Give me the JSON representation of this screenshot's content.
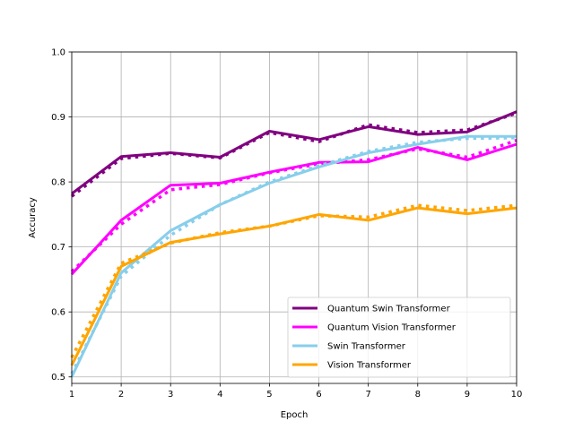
{
  "chart_data": {
    "type": "line",
    "title": "",
    "xlabel": "Epoch",
    "ylabel": "Accuracy",
    "xlim": [
      1,
      10
    ],
    "ylim": [
      0.49,
      1.0
    ],
    "x_ticks": [
      1,
      2,
      3,
      4,
      5,
      6,
      7,
      8,
      9,
      10
    ],
    "y_ticks": [
      0.5,
      0.6,
      0.7,
      0.8,
      0.9,
      1.0
    ],
    "y_tick_labels": [
      "0.5",
      "0.6",
      "0.7",
      "0.8",
      "0.9",
      "1.0"
    ],
    "grid": true,
    "legend_position": "lower-right",
    "x": [
      1,
      2,
      3,
      4,
      5,
      6,
      7,
      8,
      9,
      10
    ],
    "series": [
      {
        "name": "Quantum Swin Transformer",
        "color": "#800080",
        "values": [
          0.782,
          0.839,
          0.845,
          0.838,
          0.878,
          0.865,
          0.885,
          0.873,
          0.877,
          0.908
        ],
        "dotted_values": [
          0.778,
          0.836,
          0.844,
          0.837,
          0.876,
          0.862,
          0.888,
          0.876,
          0.88,
          0.906
        ]
      },
      {
        "name": "Quantum Vision Transformer",
        "color": "#ff00ff",
        "values": [
          0.658,
          0.741,
          0.795,
          0.798,
          0.815,
          0.83,
          0.831,
          0.853,
          0.834,
          0.858
        ],
        "dotted_values": [
          0.662,
          0.735,
          0.788,
          0.796,
          0.814,
          0.828,
          0.834,
          0.851,
          0.838,
          0.864
        ]
      },
      {
        "name": "Swin Transformer",
        "color": "#87ceeb",
        "values": [
          0.5,
          0.66,
          0.725,
          0.765,
          0.798,
          0.823,
          0.845,
          0.858,
          0.87,
          0.87
        ],
        "dotted_values": [
          0.505,
          0.655,
          0.718,
          0.765,
          0.8,
          0.825,
          0.847,
          0.861,
          0.867,
          0.868
        ]
      },
      {
        "name": "Vision Transformer",
        "color": "#ffa500",
        "values": [
          0.518,
          0.67,
          0.707,
          0.72,
          0.732,
          0.75,
          0.741,
          0.76,
          0.751,
          0.76
        ],
        "dotted_values": [
          0.53,
          0.675,
          0.706,
          0.722,
          0.732,
          0.748,
          0.746,
          0.764,
          0.756,
          0.764
        ]
      }
    ]
  }
}
